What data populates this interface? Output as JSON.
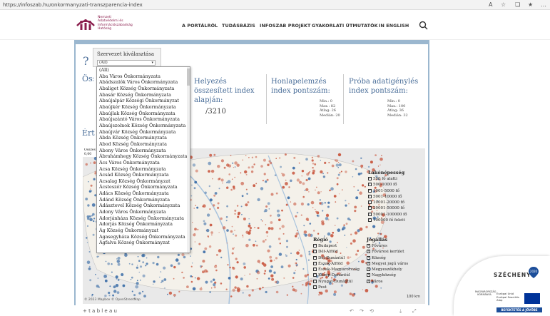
{
  "browser": {
    "url": "https://infoszab.hu/onkormanyzati-transzparencia-index"
  },
  "site": {
    "logo_text": [
      "Nemzeti",
      "Adatvédelmi és",
      "Információszabadság",
      "Hatóság"
    ],
    "nav": [
      "A PORTÁLRÓL",
      "TUDÁSBÁZIS",
      "INFOSZAB PROJEKT",
      "GYAKORLATI ÚTMUTATÓK",
      "IN ENGLISH"
    ]
  },
  "dashboard": {
    "help": "?",
    "osszes_label": "Összes",
    "ertek_label": "Érték",
    "filter": {
      "label": "Szervezet kiválasztása",
      "value": "(All)"
    },
    "dropdown_options": [
      "(All)",
      "Aba Város Önkormányzata",
      "Abádszalók Város Önkormányzata",
      "Abaliget Község Önkormányzata",
      "Abasár Község Önkormányzata",
      "Abaújalpár Községi Önkormányzat",
      "Abaújkér Község Önkormányzata",
      "Abaújlak Község Önkormányzata",
      "Abaújszántó Város Önkormányzata",
      "Abaújszolnok Község Önkormányzata",
      "Abaújvár Község Önkormányzata",
      "Abda Község Önkormányzata",
      "Abod Község Önkormányzata",
      "Abony Város Önkormányzata",
      "Ábrahámhegy Község Önkormányzata",
      "Ács Város Önkormányzata",
      "Acsa Község Önkormányzata",
      "Acsád Község Önkormányzata",
      "Acsalag Község Önkormányzat",
      "Ácsteszér Község Önkormányzata",
      "Adács Község Önkormányzata",
      "Ádánd Község Önkormányzata",
      "Adásztevel Község Önkormányzata",
      "Adony Város Önkormányzata",
      "Adorjánháza Község Önkormányzata",
      "Adorjás Község Önkormányzata",
      "Ág Község Önkormányzat",
      "Agasegyháza Község Önkormányzata",
      "Ágfalva Község Önkormányzat"
    ],
    "kpis": [
      {
        "title": "Helyezés összesített index alapján:",
        "value": "/3210"
      },
      {
        "title": "Honlapelemzés index pontszám:",
        "stats": [
          "Min.: 0",
          "Max.: 82",
          "Átlag: 26",
          "Medián: 20"
        ]
      },
      {
        "title": "Próba adatigénylés index pontszám:",
        "stats": [
          "Min.: 0",
          "Max.: 100",
          "Átlag: 36",
          "Medián: 32"
        ]
      }
    ],
    "map_header": {
      "title": "Összes",
      "value": "0,00"
    },
    "legend_lakonepesseg": {
      "title": "Lakónépesség",
      "items": [
        "500 fő alatti",
        "500-1000 fő",
        "1001-5000 fő",
        "5001-10000 fő",
        "10001-20000 fő",
        "20001-50000 fő",
        "50001-100000 fő",
        "100000 fő felett"
      ]
    },
    "legend_regio": {
      "title": "Régió",
      "items": [
        "Budapest",
        "Dél-Alföld",
        "Dél-Dunántúl",
        "Észak-Alföld",
        "Észak-Magyarország",
        "Közép-Dunántúl",
        "Nyugat-Dunántúl",
        "Pest"
      ]
    },
    "legend_jogallas": {
      "title": "Jogállás",
      "items": [
        "Főváros",
        "Fővárosi kerület",
        "Község",
        "Megyei jogú város",
        "Megyeszékhely",
        "Nagyközség",
        "Város"
      ]
    },
    "attribution": "© 2023 Mapbox  © OpenStreetMap",
    "scale": "100 km",
    "tableau": "+ t a b l e a u"
  },
  "badge": {
    "title": "SZÉCHENYI",
    "pin_text": "2020",
    "eu_text": [
      "Európai Unió",
      "Európai Szociális",
      "Alap"
    ],
    "hu_text": "MAGYARORSZÁG KORMÁNYA",
    "banner": "BEFEKTETÉS A JÖVŐBE"
  },
  "colors": {
    "brand": "#8a1e4d",
    "accent": "#4a6e99",
    "dot_blue": "#3c6ea8",
    "dot_red": "#c8553d"
  }
}
